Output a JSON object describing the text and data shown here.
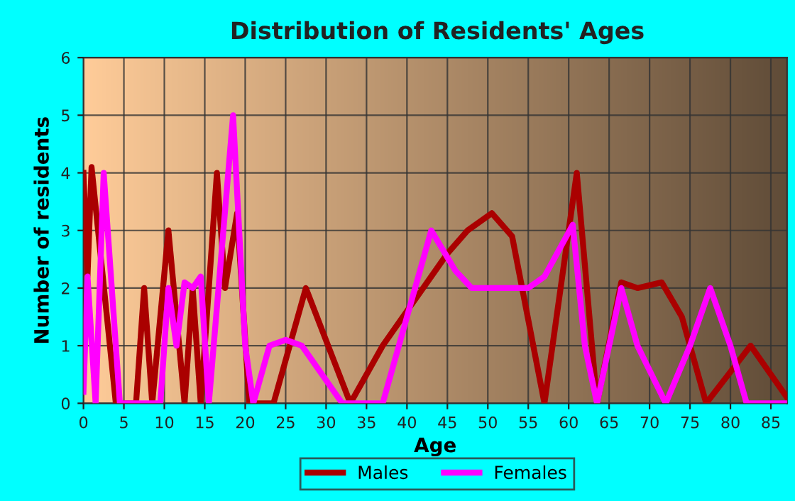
{
  "chart_data": {
    "type": "line",
    "title": "Distribution of Residents' Ages",
    "xlabel": "Age",
    "ylabel": "Number of residents",
    "xlim": [
      0,
      87
    ],
    "xticks": [
      0,
      5,
      10,
      15,
      20,
      25,
      30,
      35,
      40,
      45,
      50,
      55,
      60,
      65,
      70,
      75,
      80,
      85
    ],
    "ylim": [
      0,
      6
    ],
    "yticks": [
      0,
      1,
      2,
      3,
      4,
      5,
      6
    ],
    "grid": true,
    "legend": "bottom",
    "marker": "none",
    "line_style": "solid",
    "series": [
      {
        "name": "Males",
        "color": "#aa0000",
        "x": [
          0,
          0.5,
          1,
          4,
          6.5,
          7.5,
          8.5,
          10.5,
          12.5,
          13.5,
          14.5,
          16.5,
          17.5,
          19,
          20.5,
          23.5,
          27.5,
          33,
          37,
          40,
          45,
          47.5,
          50.5,
          53,
          57,
          61,
          63.5,
          66.5,
          68.5,
          71.5,
          74,
          77,
          82.5,
          87
        ],
        "values": [
          4,
          2.2,
          4.1,
          0,
          0,
          2,
          0,
          3,
          0,
          2,
          0,
          4,
          2,
          3.3,
          0,
          0,
          2,
          0,
          1,
          1.6,
          2.6,
          3,
          3.3,
          2.9,
          0,
          4,
          0,
          2.1,
          2,
          2.1,
          1.5,
          0,
          1,
          0.1
        ]
      },
      {
        "name": "Females",
        "color": "#ff00ff",
        "x": [
          0,
          0.5,
          1.5,
          2.5,
          4.5,
          9.5,
          10.5,
          11.5,
          12.5,
          13.5,
          14.5,
          15.5,
          18.5,
          20,
          21,
          23,
          25,
          27,
          32,
          37,
          40,
          43,
          46,
          48,
          52,
          55,
          57,
          60.5,
          62,
          63.5,
          66.5,
          68.5,
          72,
          75,
          77.5,
          80,
          82,
          87
        ],
        "values": [
          0.2,
          2.2,
          0,
          4,
          0,
          0,
          2,
          1,
          2.1,
          2,
          2.2,
          0,
          5,
          1,
          0,
          1,
          1.1,
          1,
          0,
          0,
          1.5,
          3,
          2.3,
          2,
          2,
          2,
          2.2,
          3.1,
          1,
          0,
          2,
          1,
          0,
          1,
          2,
          1,
          0,
          0
        ]
      }
    ]
  }
}
